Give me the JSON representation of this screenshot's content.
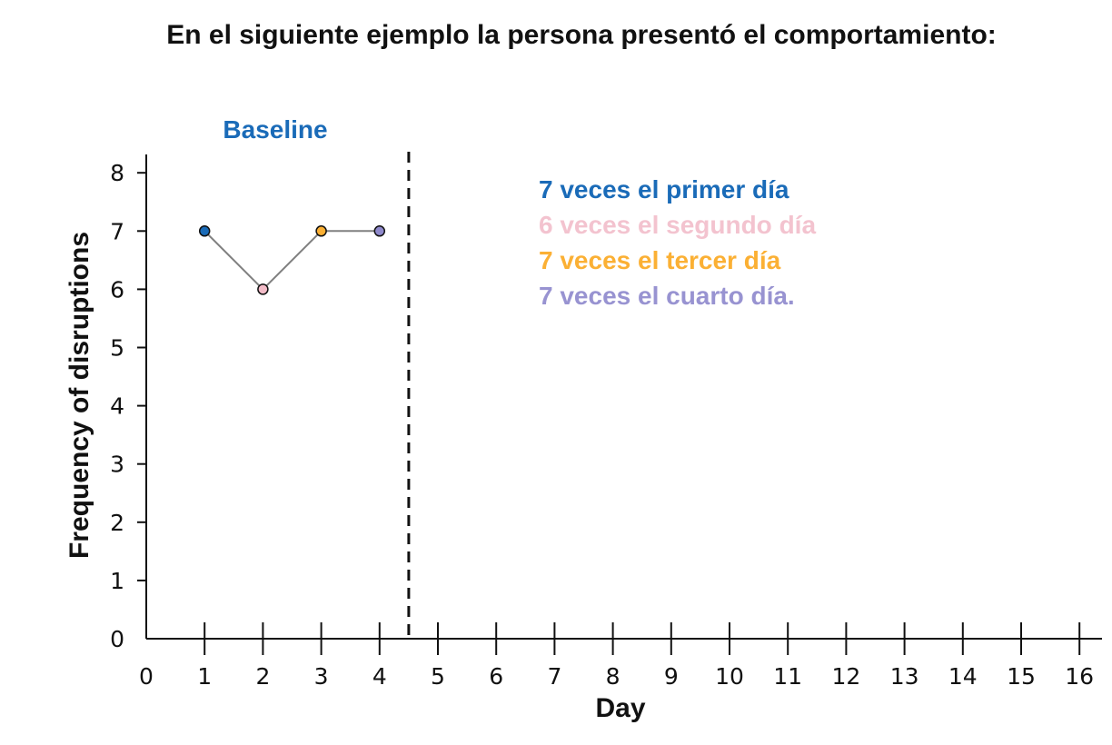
{
  "title": "En el siguiente ejemplo la persona presentó el comportamiento:",
  "chart_data": {
    "type": "line",
    "xlabel": "Day",
    "ylabel": "Frequency of disruptions",
    "xlim": [
      0,
      16
    ],
    "ylim": [
      0,
      8
    ],
    "x_ticks": [
      0,
      1,
      2,
      3,
      4,
      5,
      6,
      7,
      8,
      9,
      10,
      11,
      12,
      13,
      14,
      15,
      16
    ],
    "y_ticks": [
      0,
      1,
      2,
      3,
      4,
      5,
      6,
      7,
      8
    ],
    "phase_label": "Baseline",
    "phase_change_x": 4.5,
    "series": [
      {
        "x": [
          1,
          2,
          3,
          4
        ],
        "y": [
          7,
          6,
          7,
          7
        ],
        "line_color": "#808080",
        "point_colors": [
          "#1a6bb8",
          "#f3bcc8",
          "#fbb034",
          "#8f89cc"
        ]
      }
    ],
    "annotations": [
      {
        "text": "7 veces el primer día",
        "color": "#1a6bb8"
      },
      {
        "text": "6 veces el segundo día",
        "color": "#f3c3cf"
      },
      {
        "text": "7 veces el tercer día",
        "color": "#fbb034"
      },
      {
        "text": "7 veces el cuarto día.",
        "color": "#9893d1"
      }
    ],
    "phase_label_color": "#1a6bb8",
    "grid": false,
    "legend": "none"
  }
}
